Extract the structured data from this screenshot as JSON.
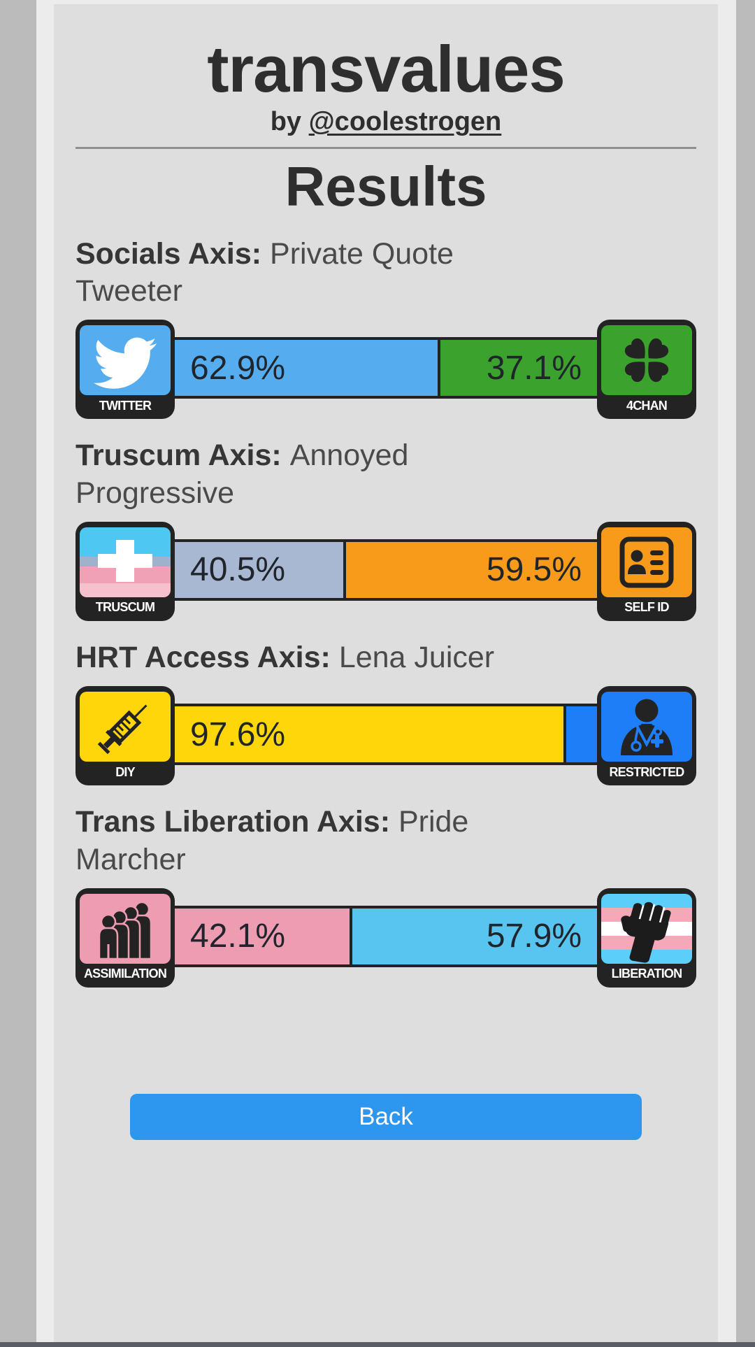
{
  "page": {
    "title": "transvalues",
    "byline_prefix": "by ",
    "byline_link": "@coolestrogen",
    "results_heading": "Results",
    "back_label": "Back"
  },
  "colors": {
    "outer_background": "#bbbbbb",
    "column_background": "#ececec",
    "card_background": "#dedede",
    "dark": "#232323",
    "back_button": "#2d96ef",
    "bottom_bar": "#5a5c66",
    "rule": "#8f8f8f"
  },
  "axes": [
    {
      "name": "Socials Axis:",
      "result": "Private Quote Tweeter",
      "left": {
        "label": "TWITTER",
        "icon": "twitter-icon",
        "pct": 62.9,
        "value": "62.9%",
        "color": "#55acee"
      },
      "right": {
        "label": "4CHAN",
        "icon": "4chan-clover-icon",
        "pct": 37.1,
        "value": "37.1%",
        "color": "#3aa22d"
      }
    },
    {
      "name": "Truscum Axis:",
      "result": "Annoyed Progressive",
      "left": {
        "label": "TRUSCUM",
        "icon": "truscum-flag-cross-icon",
        "pct": 40.5,
        "value": "40.5%",
        "color": "#a8b7d2"
      },
      "right": {
        "label": "SELF ID",
        "icon": "id-card-icon",
        "pct": 59.5,
        "value": "59.5%",
        "color": "#f89b1a"
      }
    },
    {
      "name": "HRT Access Axis:",
      "result": "Lena Juicer",
      "left": {
        "label": "DIY",
        "icon": "syringe-icon",
        "pct": 97.6,
        "value": "97.6%",
        "color": "#ffd60a"
      },
      "right": {
        "label": "RESTRICTED",
        "icon": "doctor-icon",
        "pct": 2.4,
        "value": "",
        "color": "#1d7ef8"
      }
    },
    {
      "name": "Trans Liberation Axis:",
      "result": "Pride Marcher",
      "left": {
        "label": "ASSIMILATION",
        "icon": "crowd-icon",
        "pct": 42.1,
        "value": "42.1%",
        "color": "#ee9cb2"
      },
      "right": {
        "label": "LIBERATION",
        "icon": "trans-flag-fist-icon",
        "pct": 57.9,
        "value": "57.9%",
        "color": "#58c5f0"
      }
    }
  ]
}
